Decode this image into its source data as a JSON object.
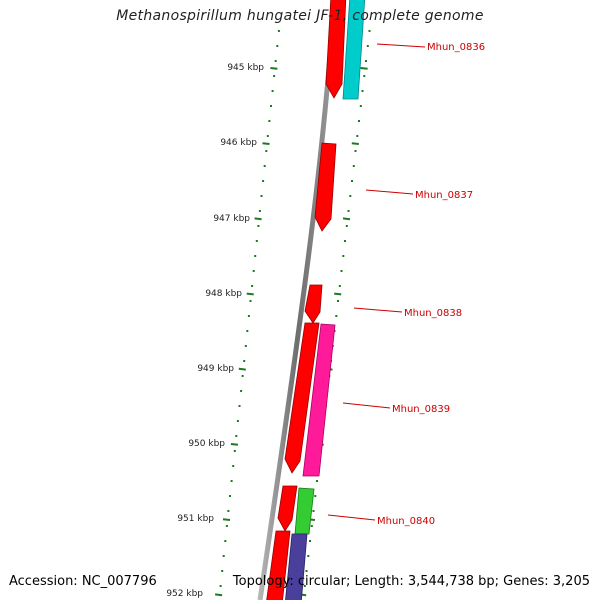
{
  "title": "Methanospirillum hungatei JF-1, complete genome",
  "accession": "Accession: NC_007796",
  "summary": "Topology: circular; Length: 3,544,738 bp; Genes: 3,205",
  "colors": {
    "backbone": "#7a7a7a",
    "tick": "#1e7a1e",
    "gene_label": "#cc0000"
  },
  "scale_labels": [
    "945 kbp",
    "946 kbp",
    "947 kbp",
    "948 kbp",
    "949 kbp",
    "950 kbp",
    "951 kbp",
    "952 kbp"
  ],
  "gene_labels": [
    "Mhun_0836",
    "Mhun_0837",
    "Mhun_0838",
    "Mhun_0839",
    "Mhun_0840"
  ],
  "features": [
    {
      "name": "Mhun_0836-cds",
      "color": "#ff0000",
      "type": "CDS"
    },
    {
      "name": "Mhun_0836-gene",
      "color": "#00cccc",
      "type": "gene"
    },
    {
      "name": "Mhun_0837-cds",
      "color": "#ff0000",
      "type": "CDS"
    },
    {
      "name": "Mhun_0838-cds",
      "color": "#ff0000",
      "type": "CDS"
    },
    {
      "name": "Mhun_0839-cds-a",
      "color": "#ff0000",
      "type": "CDS"
    },
    {
      "name": "Mhun_0839-gene",
      "color": "#ff1a9a",
      "type": "gene"
    },
    {
      "name": "Mhun_0840-cds",
      "color": "#ff0000",
      "type": "CDS"
    },
    {
      "name": "Mhun_0840-gene",
      "color": "#33cc33",
      "type": "gene"
    },
    {
      "name": "next-cds",
      "color": "#ff0000",
      "type": "CDS"
    },
    {
      "name": "next-gene",
      "color": "#4a3f9a",
      "type": "gene"
    }
  ]
}
